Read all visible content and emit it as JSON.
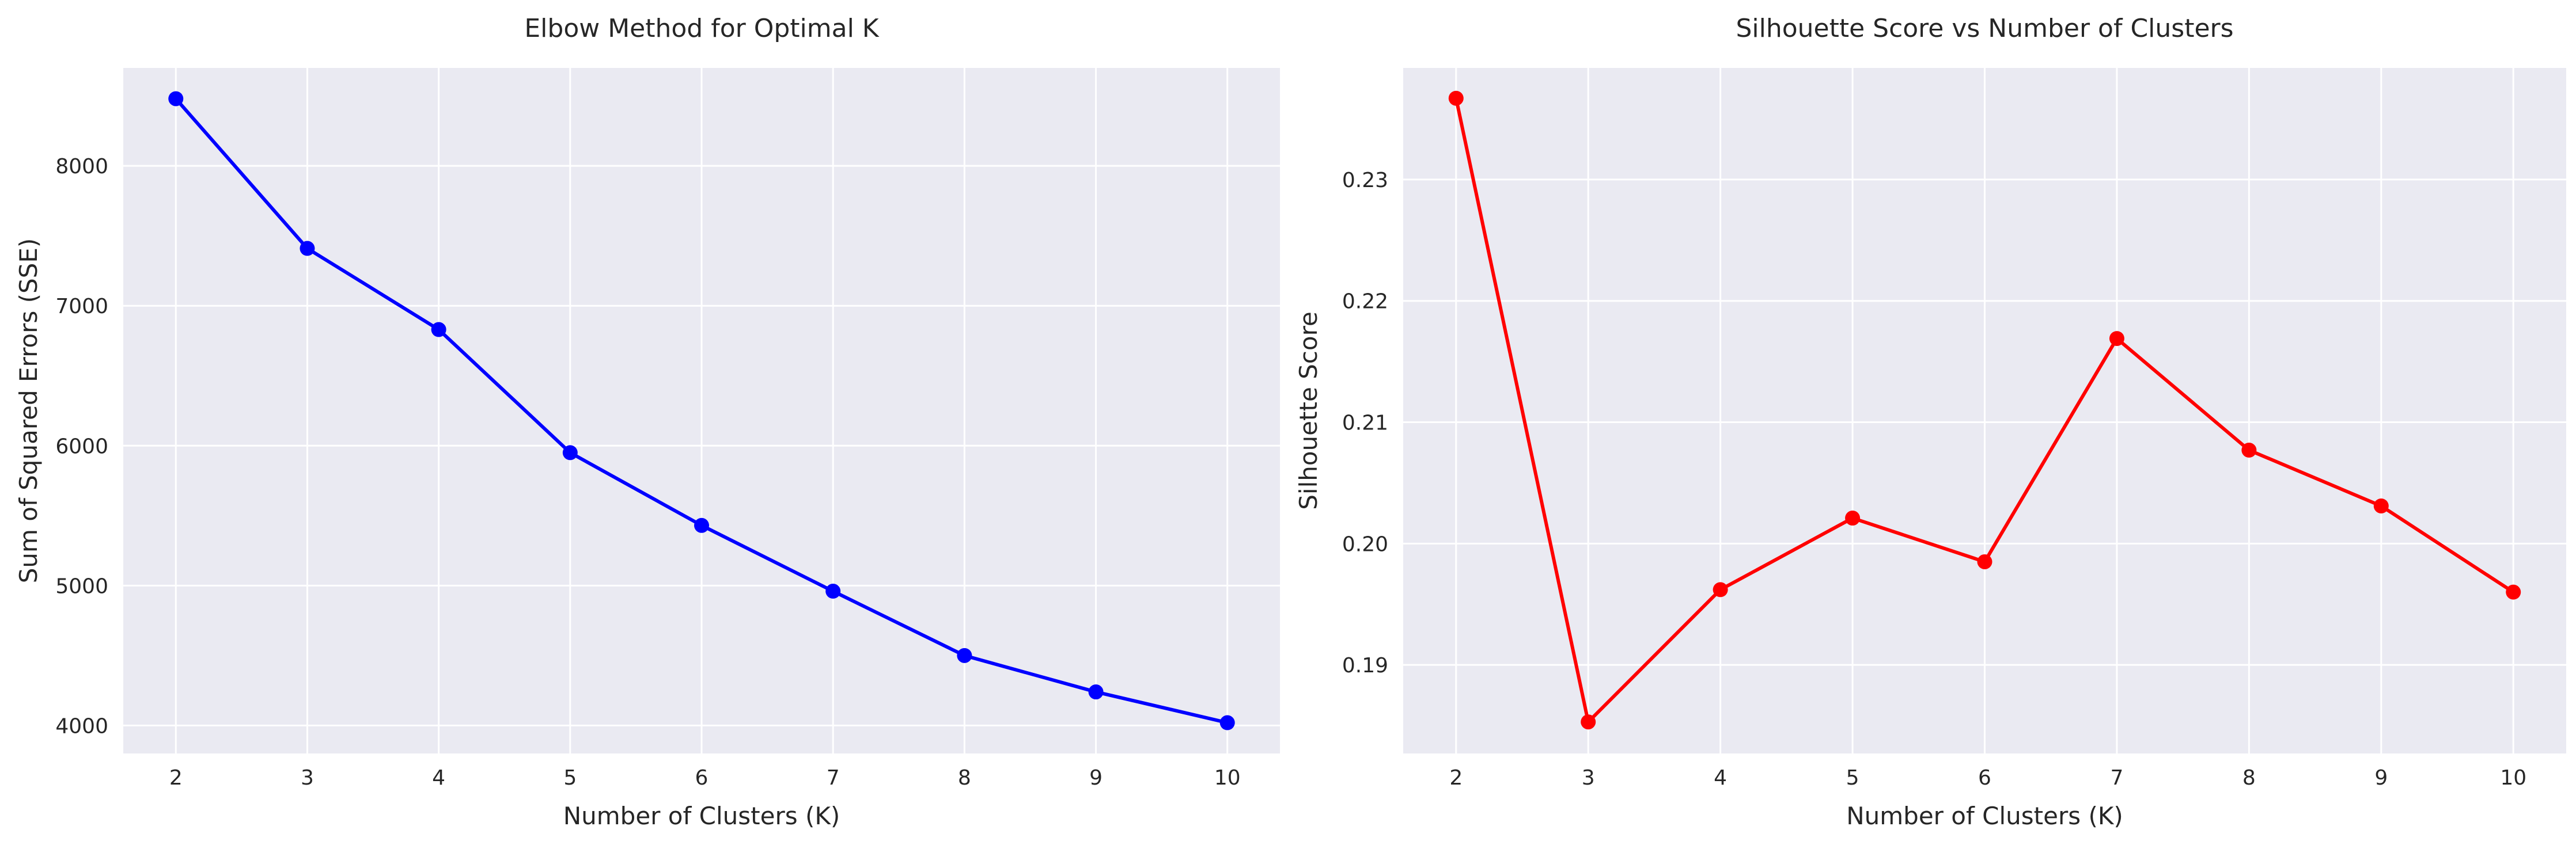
{
  "chart_data": [
    {
      "type": "line",
      "title": "Elbow Method for Optimal K",
      "xlabel": "Number of Clusters (K)",
      "ylabel": "Sum of Squared Errors (SSE)",
      "x": [
        2,
        3,
        4,
        5,
        6,
        7,
        8,
        9,
        10
      ],
      "xticks": [
        "2",
        "3",
        "4",
        "5",
        "6",
        "7",
        "8",
        "9",
        "10"
      ],
      "xlim": [
        1.6,
        10.4
      ],
      "ylim": [
        3800,
        8700
      ],
      "yticks": [
        4000,
        5000,
        6000,
        7000,
        8000
      ],
      "ytick_labels": [
        "4000",
        "5000",
        "6000",
        "7000",
        "8000"
      ],
      "grid": true,
      "series": [
        {
          "color": "#0000ff",
          "marker": "circle",
          "values": [
            8480,
            7410,
            6830,
            5950,
            5430,
            4960,
            4500,
            4240,
            4020
          ]
        }
      ]
    },
    {
      "type": "line",
      "title": "Silhouette Score vs Number of Clusters",
      "xlabel": "Number of Clusters (K)",
      "ylabel": "Silhouette Score",
      "x": [
        2,
        3,
        4,
        5,
        6,
        7,
        8,
        9,
        10
      ],
      "xticks": [
        "2",
        "3",
        "4",
        "5",
        "6",
        "7",
        "8",
        "9",
        "10"
      ],
      "xlim": [
        1.6,
        10.4
      ],
      "ylim": [
        0.1827,
        0.2392
      ],
      "yticks": [
        0.19,
        0.2,
        0.21,
        0.22,
        0.23
      ],
      "ytick_labels": [
        "0.19",
        "0.20",
        "0.21",
        "0.22",
        "0.23"
      ],
      "grid": true,
      "series": [
        {
          "color": "#ff0000",
          "marker": "circle",
          "values": [
            0.2367,
            0.1853,
            0.1962,
            0.2021,
            0.1985,
            0.2169,
            0.2077,
            0.2031,
            0.196
          ]
        }
      ]
    }
  ],
  "style": {
    "axes_background": "#eaeaf2",
    "grid_color": "#ffffff",
    "text_color": "#262626"
  }
}
